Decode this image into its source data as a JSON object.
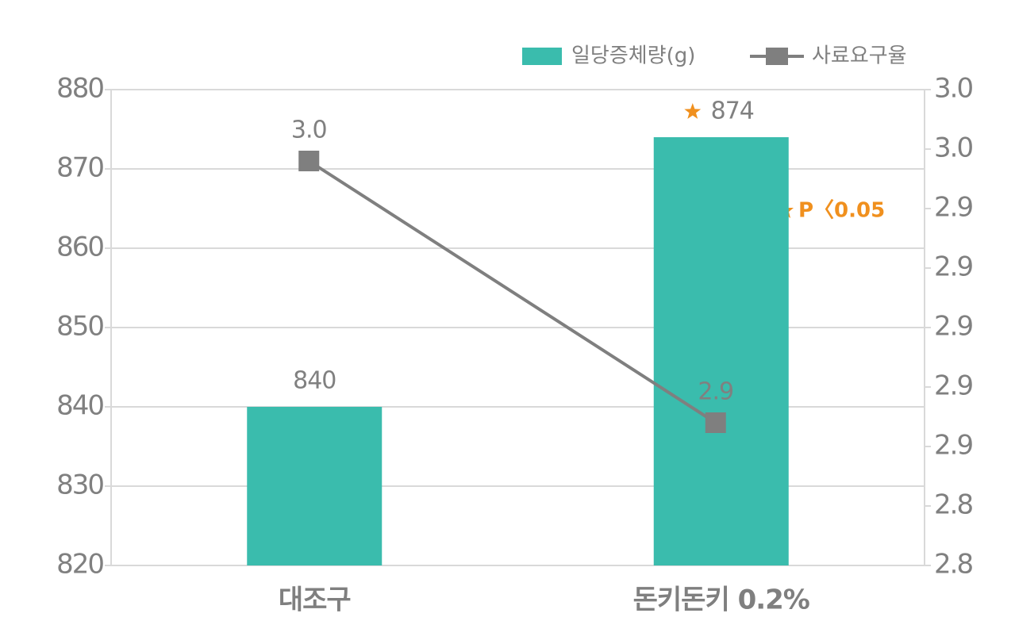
{
  "chart_data": {
    "type": "combo",
    "categories": [
      "대조구",
      "돈키돈키 0.2%"
    ],
    "series": [
      {
        "name": "일당증체량(g)",
        "type": "bar",
        "color": "#3abcad",
        "values": [
          840,
          874
        ]
      },
      {
        "name": "사료요구율",
        "type": "line",
        "color": "#7f7f7f",
        "axis": "y2",
        "values": [
          2.97,
          2.86
        ],
        "value_labels": [
          "3.0",
          "2.9"
        ]
      }
    ],
    "ylim": [
      820,
      880
    ],
    "yticks": [
      820,
      830,
      840,
      850,
      860,
      870,
      880
    ],
    "y2lim": [
      2.8,
      3.0
    ],
    "y2ticks": [
      {
        "value": 2.8,
        "label": "2.8"
      },
      {
        "value": 2.825,
        "label": "2.8"
      },
      {
        "value": 2.85,
        "label": "2.9"
      },
      {
        "value": 2.875,
        "label": "2.9"
      },
      {
        "value": 2.9,
        "label": "2.9"
      },
      {
        "value": 2.925,
        "label": "2.9"
      },
      {
        "value": 2.95,
        "label": "2.9"
      },
      {
        "value": 2.975,
        "label": "3.0"
      },
      {
        "value": 3.0,
        "label": "3.0"
      }
    ],
    "annotation": "P〈0.05",
    "grid": true,
    "legend": "top-right"
  }
}
